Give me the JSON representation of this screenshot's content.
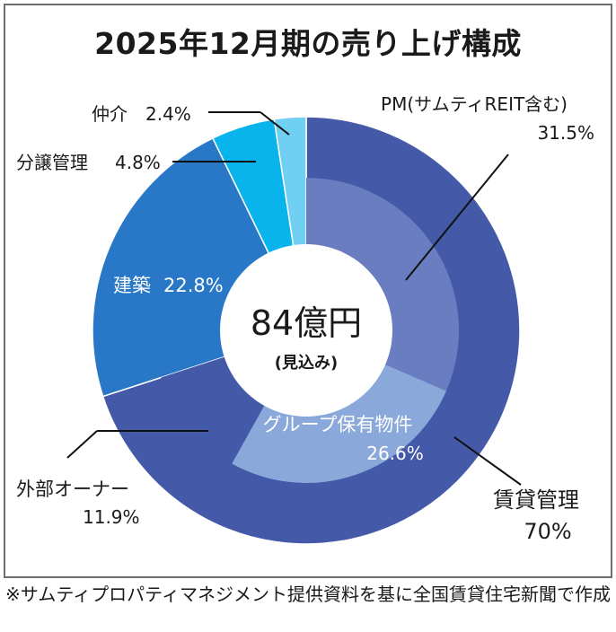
{
  "title": "2025年12月期の売り上げ構成",
  "center": {
    "value": "84億円",
    "sub": "(見込み)"
  },
  "footnote": "※サムティプロパティマネジメント提供資料を基に全国賃貸住宅新聞で作成",
  "chart_data": {
    "type": "pie",
    "title": "2025年12月期の売り上げ構成",
    "center_label": "84億円",
    "center_sublabel": "(見込み)",
    "outer": [
      {
        "label": "賃貸管理",
        "value_label": "70%",
        "value": 70,
        "color": "#4459a8"
      },
      {
        "label": "建築",
        "value_label": "22.8%",
        "value": 22.8,
        "color": "#2978c8"
      },
      {
        "label": "分譲管理",
        "value_label": "4.8%",
        "value": 4.8,
        "color": "#09b3ec"
      },
      {
        "label": "仲介",
        "value_label": "2.4%",
        "value": 2.4,
        "color": "#71cff4"
      }
    ],
    "inner": [
      {
        "label": "PM(サムティREIT含む)",
        "value_label": "31.5%",
        "value": 31.5,
        "color": "#6a7dc0"
      },
      {
        "label": "グループ保有物件",
        "value_label": "26.6%",
        "value": 26.6,
        "color": "#8aa8da"
      },
      {
        "label": "外部オーナー",
        "value_label": "11.9%",
        "value": 11.9,
        "color": "#4459a8"
      }
    ]
  }
}
